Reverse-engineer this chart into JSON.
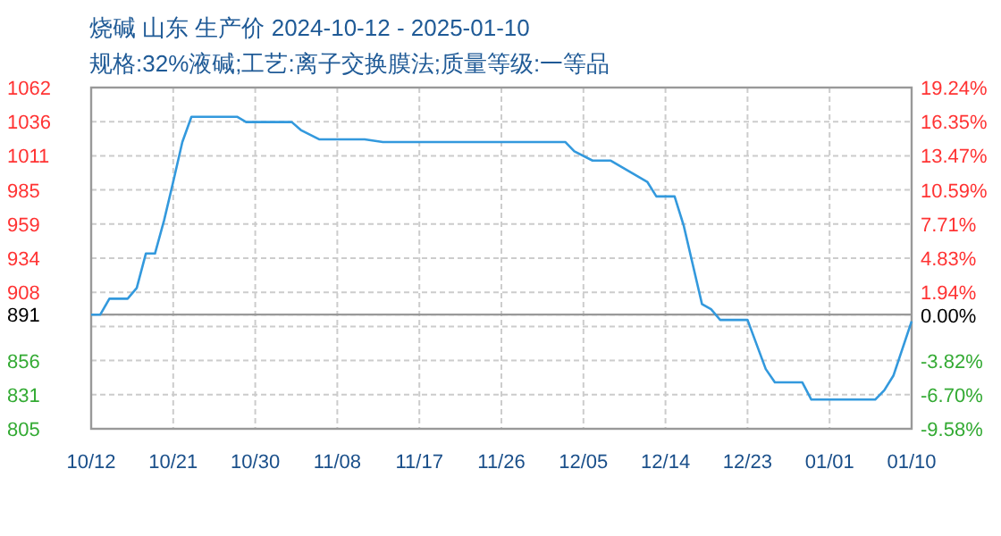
{
  "chart_data": {
    "type": "line",
    "title": "烧碱 山东 生产价 2024-10-12 - 2025-01-10",
    "subtitle": "规格:32%液碱;工艺:离子交换膜法;质量等级:一等品",
    "x": [
      "2024-10-12",
      "2024-10-13",
      "2024-10-14",
      "2024-10-16",
      "2024-10-17",
      "2024-10-18",
      "2024-10-19",
      "2024-10-20",
      "2024-10-21",
      "2024-10-22",
      "2024-10-23",
      "2024-10-28",
      "2024-10-29",
      "2024-11-03",
      "2024-11-04",
      "2024-11-06",
      "2024-11-11",
      "2024-11-13",
      "2024-12-03",
      "2024-12-04",
      "2024-12-06",
      "2024-12-08",
      "2024-12-12",
      "2024-12-13",
      "2024-12-15",
      "2024-12-16",
      "2024-12-18",
      "2024-12-19",
      "2024-12-20",
      "2024-12-23",
      "2024-12-25",
      "2024-12-26",
      "2024-12-29",
      "2024-12-30",
      "2025-01-06",
      "2025-01-07",
      "2025-01-08",
      "2025-01-10"
    ],
    "series": [
      {
        "color": "#3399dd",
        "values": [
          891,
          891,
          903,
          903,
          911,
          937,
          937,
          962,
          991,
          1021,
          1040,
          1040,
          1036,
          1036,
          1030,
          1023,
          1023,
          1021,
          1021,
          1014,
          1007,
          1007,
          991,
          980,
          980,
          958,
          899,
          895,
          887,
          887,
          850,
          840,
          840,
          827,
          827,
          834,
          845,
          886
        ]
      }
    ],
    "xlim": [
      "2024-10-12",
      "2025-01-10"
    ],
    "xticks": [
      {
        "value": "2024-10-12",
        "label": "10/12"
      },
      {
        "value": "2024-10-21",
        "label": "10/21"
      },
      {
        "value": "2024-10-30",
        "label": "10/30"
      },
      {
        "value": "2024-11-08",
        "label": "11/08"
      },
      {
        "value": "2024-11-17",
        "label": "11/17"
      },
      {
        "value": "2024-11-26",
        "label": "11/26"
      },
      {
        "value": "2024-12-05",
        "label": "12/05"
      },
      {
        "value": "2024-12-14",
        "label": "12/14"
      },
      {
        "value": "2024-12-23",
        "label": "12/23"
      },
      {
        "value": "2025-01-01",
        "label": "01/01"
      },
      {
        "value": "2025-01-10",
        "label": "01/10"
      }
    ],
    "ylim": [
      805,
      1062
    ],
    "yticks": [
      805,
      {
        "value": 830.7,
        "label": "831"
      },
      {
        "value": 856.4,
        "label": "856"
      },
      {
        "value": 882.1,
        "label": null
      },
      891,
      {
        "value": 907.8,
        "label": "908"
      },
      {
        "value": 933.5,
        "label": "934"
      },
      {
        "value": 959.2,
        "label": "959"
      },
      {
        "value": 984.9,
        "label": "985"
      },
      {
        "value": 1010.6,
        "label": "1011"
      },
      {
        "value": 1036.3,
        "label": "1036"
      },
      1062
    ],
    "y2lim": [
      -9.58,
      19.24
    ],
    "y2ticks": [
      {
        "value": -9.58,
        "label": "-9.58%"
      },
      {
        "value": -6.7,
        "label": "-6.70%"
      },
      {
        "value": -3.82,
        "label": "-3.82%"
      },
      {
        "value": 0,
        "label": "0.00%"
      },
      {
        "value": 1.94,
        "label": "1.94%"
      },
      {
        "value": 4.83,
        "label": "4.83%"
      },
      {
        "value": 7.71,
        "label": "7.71%"
      },
      {
        "value": 10.59,
        "label": "10.59%"
      },
      {
        "value": 13.47,
        "label": "13.47%"
      },
      {
        "value": 16.35,
        "label": "16.35%"
      },
      {
        "value": 19.24,
        "label": "19.24%"
      }
    ],
    "ref_lines": [
      {
        "axis": "y",
        "value": 891,
        "color": "#999999",
        "line_style": "solid"
      }
    ],
    "grid": true,
    "marker": "none",
    "line_style": "solid"
  }
}
